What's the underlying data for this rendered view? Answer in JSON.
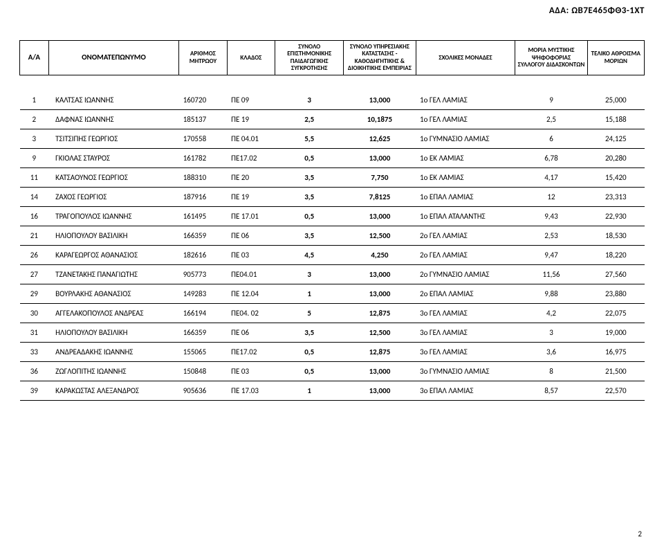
{
  "doc_id": "ΑΔΑ: ΩΒ7Ε465ΦΘ3-1ΧΤ",
  "page_number": "2",
  "headers": {
    "aa": "Α/Α",
    "name": "ΟΝΟΜΑΤΕΠΩΝΥΜΟ",
    "reg": "ΑΡΙΘΜΟΣ ΜΗΤΡΩΟΥ",
    "klados": "ΚΛΑΔΟΣ",
    "syn1": "ΣΥΝΟΛΟ ΕΠΙΣΤΗΜΟΝΙΚΗΣ ΠΑΙΔΑΓΩΓΙΚΗΣ ΣΥΓΚΡΟΤΗΣΗΣ",
    "syn2": "ΣΥΝΟΛΟ ΥΠΗΡΕΣΙΑΚΗΣ ΚΑΤΑΣΤΑΣΗΣ - ΚΑΘΟΔΗΓΗΤΙΚΗΣ & ΔΙΟΙΚΗΤΙΚΗΣ ΕΜΠΕΙΡΙΑΣ",
    "school": "ΣΧΟΛΙΚΕΣ ΜΟΝΑΔΕΣ",
    "moria": "ΜΟΡΙΑ ΜΥΣΤΙΚΗΣ ΨΗΦΟΦΟΡΙΑΣ ΣΥΛΛΟΓΟΥ ΔΙΔΑΣΚΟΝΤΩΝ",
    "total": "ΤΕΛΙΚΟ ΑΘΡΟΙΣΜΑ ΜΟΡΙΩΝ"
  },
  "rows": [
    {
      "aa": "1",
      "name": "ΚΑΛΤΣΑΣ ΙΩΑΝΝΗΣ",
      "reg": "160720",
      "klados": "ΠΕ 09",
      "syn1": "3",
      "syn2": "13,000",
      "school": "1ο ΓΕΛ ΛΑΜΙΑΣ",
      "moria": "9",
      "total": "25,000"
    },
    {
      "aa": "2",
      "name": "ΔΑΦΝΑΣ ΙΩΑΝΝΗΣ",
      "reg": "185137",
      "klados": "ΠΕ 19",
      "syn1": "2,5",
      "syn2": "10,1875",
      "school": "1ο ΓΕΛ ΛΑΜΙΑΣ",
      "moria": "2,5",
      "total": "15,188"
    },
    {
      "aa": "3",
      "name": "ΤΣΙΤΣΙΠΗΣ ΓΕΩΡΓΙΟΣ",
      "reg": "170558",
      "klados": "ΠΕ 04.01",
      "syn1": "5,5",
      "syn2": "12,625",
      "school": "1ο ΓΥΜΝΑΣΙΟ ΛΑΜΙΑΣ",
      "moria": "6",
      "total": "24,125"
    },
    {
      "aa": "9",
      "name": "ΓΚΙΟΛΑΣ ΣΤΑΥΡΟΣ",
      "reg": "161782",
      "klados": "ΠΕ17.02",
      "syn1": "0,5",
      "syn2": "13,000",
      "school": "1ο ΕΚ ΛΑΜΙΑΣ",
      "moria": "6,78",
      "total": "20,280"
    },
    {
      "aa": "11",
      "name": "ΚΑΤΣΑΟΥΝΟΣ ΓΕΩΡΓΙΟΣ",
      "reg": "188310",
      "klados": "ΠΕ 20",
      "syn1": "3,5",
      "syn2": "7,750",
      "school": "1ο ΕΚ ΛΑΜΙΑΣ",
      "moria": "4,17",
      "total": "15,420"
    },
    {
      "aa": "14",
      "name": "ΖΑΧΟΣ ΓΕΩΡΓΙΟΣ",
      "reg": "187916",
      "klados": "ΠΕ 19",
      "syn1": "3,5",
      "syn2": "7,8125",
      "school": "1ο ΕΠΑΛ ΛΑΜΙΑΣ",
      "moria": "12",
      "total": "23,313"
    },
    {
      "aa": "16",
      "name": "ΤΡΑΓΟΠΟΥΛΟΣ ΙΩΑΝΝΗΣ",
      "reg": "161495",
      "klados": "ΠΕ 17.01",
      "syn1": "0,5",
      "syn2": "13,000",
      "school": "1ο ΕΠΑΛ ΑΤΑΛΑΝΤΗΣ",
      "moria": "9,43",
      "total": "22,930"
    },
    {
      "aa": "21",
      "name": "ΗΛΙΟΠΟΥΛΟΥ ΒΑΣΙΛΙΚΗ",
      "reg": "166359",
      "klados": "ΠΕ 06",
      "syn1": "3,5",
      "syn2": "12,500",
      "school": "2ο ΓΕΛ ΛΑΜΙΑΣ",
      "moria": "2,53",
      "total": "18,530"
    },
    {
      "aa": "26",
      "name": "ΚΑΡΑΓΕΩΡΓΟΣ ΑΘΑΝΑΣΙΟΣ",
      "reg": "182616",
      "klados": "ΠΕ 03",
      "syn1": "4,5",
      "syn2": "4,250",
      "school": "2ο ΓΕΛ ΛΑΜΙΑΣ",
      "moria": "9,47",
      "total": "18,220"
    },
    {
      "aa": "27",
      "name": "ΤΖΑΝΕΤΑΚΗΣ ΠΑΝΑΓΙΩΤΗΣ",
      "reg": "905773",
      "klados": "ΠΕ04.01",
      "syn1": "3",
      "syn2": "13,000",
      "school": "2ο ΓΥΜΝΑΣΙΟ ΛΑΜΙΑΣ",
      "moria": "11,56",
      "total": "27,560"
    },
    {
      "aa": "29",
      "name": "ΒΟΥΡΛΑΚΗΣ ΑΘΑΝΑΣΙΟΣ",
      "reg": "149283",
      "klados": "ΠΕ 12.04",
      "syn1": "1",
      "syn2": "13,000",
      "school": "2ο ΕΠΑΛ ΛΑΜΙΑΣ",
      "moria": "9,88",
      "total": "23,880"
    },
    {
      "aa": "30",
      "name": "ΑΓΓΕΛΑΚΟΠΟΥΛΟΣ ΑΝΔΡΕΑΣ",
      "reg": "166194",
      "klados": "ΠΕ04. 02",
      "syn1": "5",
      "syn2": "12,875",
      "school": "3ο ΓΕΛ ΛΑΜΙΑΣ",
      "moria": "4,2",
      "total": "22,075"
    },
    {
      "aa": "31",
      "name": "ΗΛΙΟΠΟΥΛΟΥ ΒΑΣΙΛΙΚΗ",
      "reg": "166359",
      "klados": "ΠΕ 06",
      "syn1": "3,5",
      "syn2": "12,500",
      "school": "3ο ΓΕΛ ΛΑΜΙΑΣ",
      "moria": "3",
      "total": "19,000"
    },
    {
      "aa": "33",
      "name": "ΑΝΔΡΕΑΔΑΚΗΣ ΙΩΑΝΝΗΣ",
      "reg": "155065",
      "klados": "ΠΕ17.02",
      "syn1": "0,5",
      "syn2": "12,875",
      "school": "3ο ΓΕΛ ΛΑΜΙΑΣ",
      "moria": "3,6",
      "total": "16,975"
    },
    {
      "aa": "36",
      "name": "ΖΩΓΛΟΠΙΤΗΣ ΙΩΑΝΝΗΣ",
      "reg": "150848",
      "klados": "ΠΕ 03",
      "syn1": "0,5",
      "syn2": "13,000",
      "school": "3ο ΓΥΜΝΑΣΙΟ ΛΑΜΙΑΣ",
      "moria": "8",
      "total": "21,500"
    },
    {
      "aa": "39",
      "name": "ΚΑΡΑΚΩΣΤΑΣ ΑΛΕΞΑΝΔΡΟΣ",
      "reg": "905636",
      "klados": "ΠΕ 17.03",
      "syn1": "1",
      "syn2": "13,000",
      "school": "3ο ΕΠΑΛ ΛΑΜΙΑΣ",
      "moria": "8,57",
      "total": "22,570"
    }
  ]
}
